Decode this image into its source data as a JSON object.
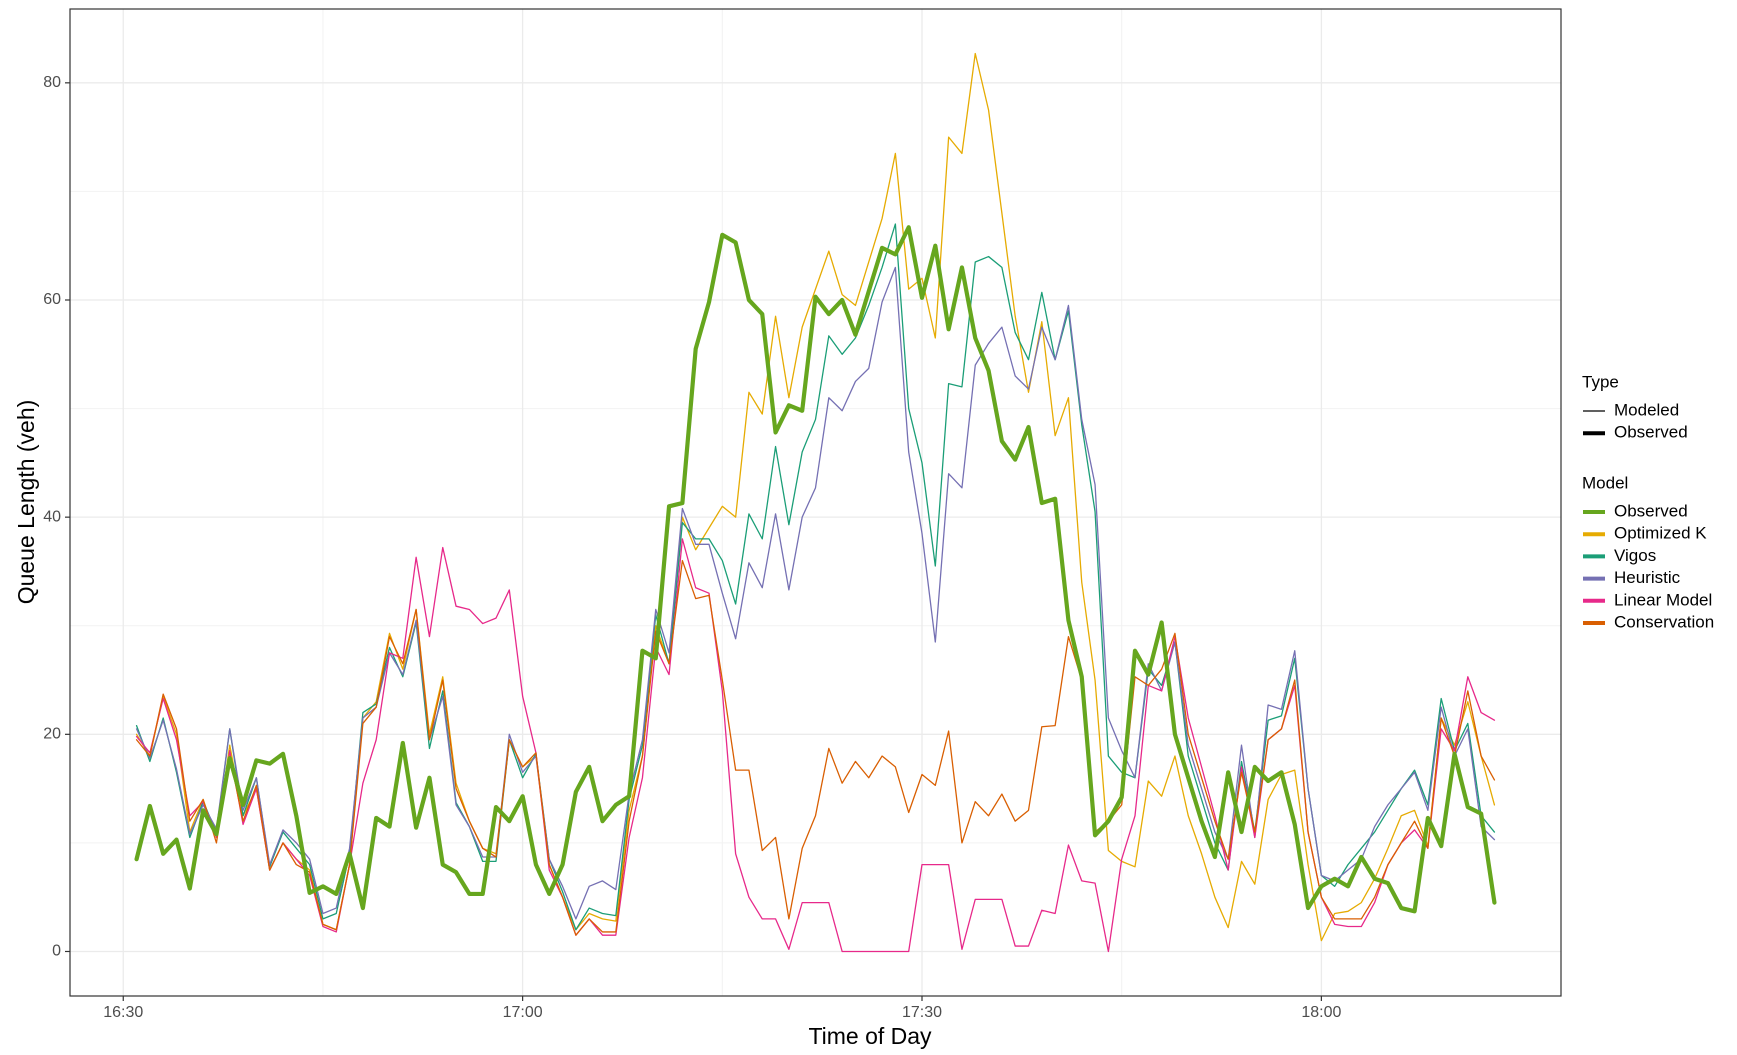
{
  "chart_data": {
    "type": "line",
    "x_label": "Time of Day",
    "y_label": "Queue Length (veh)",
    "x": [
      "16:31",
      "16:32",
      "16:33",
      "16:34",
      "16:35",
      "16:36",
      "16:37",
      "16:38",
      "16:39",
      "16:40",
      "16:41",
      "16:42",
      "16:43",
      "16:44",
      "16:45",
      "16:46",
      "16:47",
      "16:48",
      "16:49",
      "16:50",
      "16:51",
      "16:52",
      "16:53",
      "16:54",
      "16:55",
      "16:56",
      "16:57",
      "16:58",
      "16:59",
      "17:00",
      "17:01",
      "17:02",
      "17:03",
      "17:04",
      "17:05",
      "17:06",
      "17:07",
      "17:08",
      "17:09",
      "17:10",
      "17:11",
      "17:12",
      "17:13",
      "17:14",
      "17:15",
      "17:16",
      "17:17",
      "17:18",
      "17:19",
      "17:20",
      "17:21",
      "17:22",
      "17:23",
      "17:24",
      "17:25",
      "17:26",
      "17:27",
      "17:28",
      "17:29",
      "17:30",
      "17:31",
      "17:32",
      "17:33",
      "17:34",
      "17:35",
      "17:36",
      "17:37",
      "17:38",
      "17:39",
      "17:40",
      "17:41",
      "17:42",
      "17:43",
      "17:44",
      "17:45",
      "17:46",
      "17:47",
      "17:48",
      "17:49",
      "17:50",
      "17:51",
      "17:52",
      "17:53",
      "17:54",
      "17:55",
      "17:56",
      "17:57",
      "17:58",
      "17:59",
      "18:00",
      "18:01",
      "18:02",
      "18:03",
      "18:04",
      "18:05",
      "18:06",
      "18:07",
      "18:08",
      "18:09",
      "18:10",
      "18:11",
      "18:12",
      "18:13"
    ],
    "series": [
      {
        "name": "Observed",
        "group": "Observed",
        "color": "#66a61e",
        "values": [
          8.5,
          13.4,
          9,
          10.3,
          5.8,
          13,
          10.8,
          17.8,
          13.5,
          17.6,
          17.3,
          18.2,
          12.5,
          5.4,
          6,
          5.3,
          9,
          4,
          12.3,
          11.5,
          19.2,
          11.4,
          16,
          8,
          7.3,
          5.3,
          5.3,
          13.3,
          12,
          14.3,
          8,
          5.3,
          8,
          14.7,
          17,
          12,
          13.5,
          14.3,
          27.7,
          27,
          41,
          41.3,
          55.5,
          59.8,
          66,
          65.3,
          60,
          58.7,
          47.8,
          50.3,
          49.8,
          60.3,
          58.7,
          60,
          56.8,
          60.8,
          64.8,
          64.2,
          66.7,
          60.2,
          65,
          57.3,
          63,
          56.5,
          53.5,
          47,
          45.3,
          48.3,
          41.3,
          41.7,
          30.5,
          25.3,
          10.7,
          12,
          14.2,
          27.7,
          25.5,
          30.3,
          20,
          16,
          12,
          8.7,
          16.5,
          11,
          17,
          15.7,
          16.5,
          11.7,
          4,
          6,
          6.7,
          6,
          8.7,
          6.7,
          6.3,
          4,
          3.7,
          12.3,
          9.7,
          18.2,
          13.3,
          12.7,
          4.5
        ]
      },
      {
        "name": "Optimized K",
        "group": "Modeled",
        "color": "#e6ab02",
        "values": [
          20,
          18,
          23.5,
          20,
          11,
          14,
          10.5,
          19,
          12.5,
          15,
          7.5,
          10,
          8.5,
          7.5,
          2.5,
          2,
          8,
          21.5,
          23,
          29.3,
          26,
          31.5,
          20,
          25.3,
          15.5,
          12,
          9.5,
          9,
          19.5,
          17,
          18,
          8,
          5,
          2,
          3.5,
          3,
          2.8,
          13,
          18,
          30,
          26.5,
          40,
          37,
          39,
          41,
          40,
          51.5,
          49.5,
          58.5,
          51,
          57.5,
          61,
          64.5,
          60.5,
          59.5,
          63.5,
          67.5,
          73.5,
          61,
          62,
          56.5,
          75,
          73.5,
          82.7,
          77.5,
          68,
          58.5,
          51.5,
          58,
          47.5,
          51,
          34,
          25,
          9.3,
          8.3,
          7.8,
          15.7,
          14.3,
          18,
          12.5,
          9,
          5,
          2.2,
          8.3,
          6.2,
          14,
          16.3,
          16.7,
          8,
          1,
          3.5,
          3.7,
          4.5,
          6.7,
          9.5,
          12.5,
          13,
          9.7,
          21.5,
          19,
          23,
          18,
          13.5
        ]
      },
      {
        "name": "Vigos",
        "group": "Modeled",
        "color": "#1b9e77",
        "values": [
          20.8,
          17.5,
          21.5,
          16.5,
          10.5,
          13.8,
          11,
          20.5,
          12.5,
          16,
          7.8,
          11,
          9.5,
          8,
          3,
          3.5,
          9,
          22,
          22.8,
          28,
          25.3,
          30.3,
          18.7,
          24,
          13.7,
          11.5,
          8.3,
          8.3,
          19.5,
          16,
          18.2,
          8.5,
          5.5,
          2,
          4,
          3.5,
          3.3,
          14,
          19,
          31,
          26.5,
          39.5,
          38,
          38,
          36,
          32,
          40.3,
          38,
          46.5,
          39.3,
          46,
          49,
          56.7,
          55,
          56.5,
          59.5,
          63,
          67,
          50,
          45,
          35.5,
          52.3,
          52,
          63.5,
          64,
          63,
          57,
          54.5,
          60.7,
          54.5,
          59,
          48.5,
          40.5,
          18,
          16.5,
          16,
          26,
          24.5,
          28.5,
          18,
          14,
          10,
          7.5,
          17.5,
          11,
          21.3,
          21.7,
          27,
          15,
          7,
          6,
          8,
          9.5,
          11,
          13,
          15,
          16.7,
          13.5,
          23.3,
          18.5,
          21,
          12.5,
          11
        ]
      },
      {
        "name": "Heuristic",
        "group": "Modeled",
        "color": "#7570b3",
        "values": [
          20.5,
          17.8,
          21.3,
          16.8,
          10.8,
          13.5,
          11.3,
          20.5,
          13,
          16,
          8,
          11.2,
          10,
          8.5,
          3.5,
          4,
          9.5,
          21.5,
          22.5,
          27.5,
          25.5,
          30.5,
          19.5,
          23.5,
          13.5,
          11.5,
          8.7,
          8.7,
          20,
          16.5,
          18,
          8.5,
          6,
          3,
          6,
          6.5,
          5.7,
          14.5,
          19.5,
          31.5,
          27.5,
          40.8,
          37.5,
          37.5,
          33,
          28.8,
          35.8,
          33.5,
          40.3,
          33.3,
          40,
          42.7,
          51,
          49.8,
          52.5,
          53.7,
          59.8,
          63,
          46,
          38.5,
          28.5,
          44,
          42.7,
          54,
          56,
          57.5,
          53,
          51.8,
          57.5,
          54.5,
          59.5,
          49,
          43,
          21.5,
          18.5,
          16,
          26.5,
          24,
          28.5,
          19,
          15,
          11,
          8.5,
          19,
          10.5,
          22.7,
          22.3,
          27.7,
          15,
          7,
          6.5,
          7.5,
          8.5,
          11.5,
          13.5,
          15,
          16.5,
          13,
          22.5,
          18,
          20.5,
          11.5,
          10.3
        ]
      },
      {
        "name": "Linear Model",
        "group": "Modeled",
        "color": "#e7298a",
        "values": [
          19.8,
          18.3,
          23.3,
          19.5,
          12.5,
          13.8,
          10.5,
          18.5,
          11.7,
          15,
          7.5,
          10,
          8.5,
          7,
          2.3,
          1.8,
          8,
          15.5,
          19.5,
          27.5,
          27,
          36.3,
          29,
          37.2,
          31.8,
          31.5,
          30.2,
          30.7,
          33.3,
          23.5,
          18.3,
          7.5,
          5,
          1.5,
          3,
          1.5,
          1.5,
          10.5,
          16,
          28,
          25.5,
          38,
          33.5,
          33,
          24,
          9,
          5,
          3,
          3,
          0.2,
          4.5,
          4.5,
          4.5,
          0,
          0,
          0,
          0,
          0,
          0,
          8,
          8,
          8,
          0.2,
          4.8,
          4.8,
          4.8,
          0.5,
          0.5,
          3.8,
          3.5,
          9.8,
          6.5,
          6.3,
          0,
          8.5,
          12.5,
          24.5,
          24,
          29,
          21.5,
          17,
          12.5,
          7.5,
          17,
          10.5,
          19.5,
          20.5,
          24.5,
          11,
          5,
          2.5,
          2.3,
          2.3,
          4.5,
          8,
          10,
          11.2,
          9.5,
          20.5,
          18.5,
          25.3,
          22,
          21.3
        ]
      },
      {
        "name": "Conservation",
        "group": "Modeled",
        "color": "#d95f02",
        "values": [
          19.5,
          18,
          23.7,
          20.5,
          12,
          14,
          10,
          18,
          12,
          15.3,
          7.5,
          10,
          8,
          7.3,
          2.5,
          2,
          8,
          21,
          22.5,
          29,
          26.5,
          31.5,
          19.5,
          25,
          15,
          12,
          9.5,
          8.7,
          19.5,
          17,
          18.3,
          8,
          5,
          1.5,
          3,
          1.8,
          1.8,
          12,
          18,
          29.5,
          26.5,
          36,
          32.5,
          32.8,
          25,
          16.7,
          16.7,
          9.3,
          10.5,
          3,
          9.5,
          12.5,
          18.7,
          15.5,
          17.5,
          16,
          18,
          17,
          12.8,
          16.3,
          15.3,
          20.3,
          10,
          13.8,
          12.5,
          14.5,
          12,
          13,
          20.7,
          20.8,
          29,
          25,
          11,
          12,
          13.5,
          25.3,
          24.5,
          26,
          29.3,
          20,
          16,
          12,
          8.5,
          16.5,
          11,
          19.5,
          20.5,
          25,
          11,
          5,
          3,
          3,
          3,
          5,
          8,
          10,
          12,
          9.5,
          21.5,
          18,
          24,
          18,
          15.8
        ]
      }
    ],
    "xlim": [
      "16:26",
      "18:18"
    ],
    "xticks": [
      "16:30",
      "17:00",
      "17:30",
      "18:00"
    ],
    "ylim": [
      -4.1,
      86.8
    ],
    "yticks": [
      0,
      20,
      40,
      60,
      80
    ],
    "grid": true,
    "legend_position": "right",
    "legend_type": {
      "title": "Type",
      "entries": [
        "Modeled",
        "Observed"
      ]
    },
    "legend_model_title": "Model"
  }
}
